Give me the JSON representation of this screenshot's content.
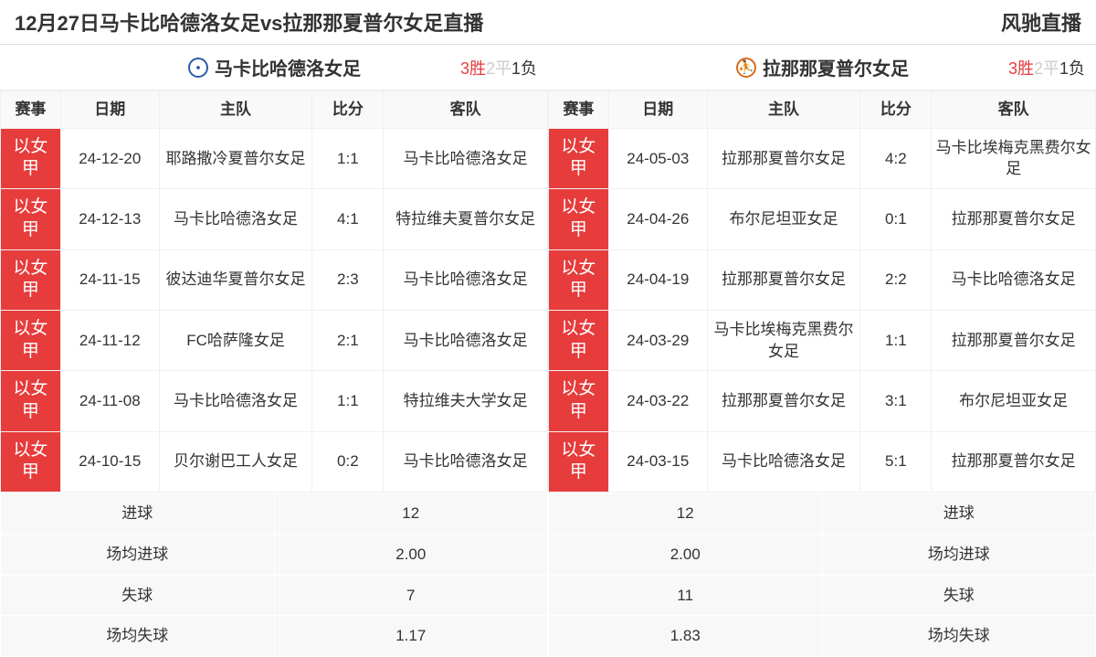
{
  "header": {
    "title": "12月27日马卡比哈德洛女足vs拉那那夏普尔女足直播",
    "brand": "风驰直播"
  },
  "colors": {
    "league_bg": "#e63c3c",
    "win": "#e63c3c",
    "draw": "#cccccc",
    "loss": "#333333"
  },
  "columns": {
    "league": "赛事",
    "date": "日期",
    "home": "主队",
    "score": "比分",
    "away": "客队"
  },
  "stats_labels": {
    "goals": "进球",
    "avg_goals": "场均进球",
    "conceded": "失球",
    "avg_conceded": "场均失球"
  },
  "left": {
    "team": "马卡比哈德洛女足",
    "record": {
      "win": "3胜",
      "draw": "2平",
      "loss": "1负"
    },
    "rows": [
      {
        "league": "以女甲",
        "date": "24-12-20",
        "home": "耶路撒冷夏普尔女足",
        "score": "1:1",
        "away": "马卡比哈德洛女足"
      },
      {
        "league": "以女甲",
        "date": "24-12-13",
        "home": "马卡比哈德洛女足",
        "score": "4:1",
        "away": "特拉维夫夏普尔女足"
      },
      {
        "league": "以女甲",
        "date": "24-11-15",
        "home": "彼达迪华夏普尔女足",
        "score": "2:3",
        "away": "马卡比哈德洛女足"
      },
      {
        "league": "以女甲",
        "date": "24-11-12",
        "home": "FC哈萨隆女足",
        "score": "2:1",
        "away": "马卡比哈德洛女足"
      },
      {
        "league": "以女甲",
        "date": "24-11-08",
        "home": "马卡比哈德洛女足",
        "score": "1:1",
        "away": "特拉维夫大学女足"
      },
      {
        "league": "以女甲",
        "date": "24-10-15",
        "home": "贝尔谢巴工人女足",
        "score": "0:2",
        "away": "马卡比哈德洛女足"
      }
    ],
    "stats": {
      "goals": "12",
      "avg_goals": "2.00",
      "conceded": "7",
      "avg_conceded": "1.17"
    }
  },
  "right": {
    "team": "拉那那夏普尔女足",
    "record": {
      "win": "3胜",
      "draw": "2平",
      "loss": "1负"
    },
    "rows": [
      {
        "league": "以女甲",
        "date": "24-05-03",
        "home": "拉那那夏普尔女足",
        "score": "4:2",
        "away": "马卡比埃梅克黑费尔女足"
      },
      {
        "league": "以女甲",
        "date": "24-04-26",
        "home": "布尔尼坦亚女足",
        "score": "0:1",
        "away": "拉那那夏普尔女足"
      },
      {
        "league": "以女甲",
        "date": "24-04-19",
        "home": "拉那那夏普尔女足",
        "score": "2:2",
        "away": "马卡比哈德洛女足"
      },
      {
        "league": "以女甲",
        "date": "24-03-29",
        "home": "马卡比埃梅克黑费尔女足",
        "score": "1:1",
        "away": "拉那那夏普尔女足"
      },
      {
        "league": "以女甲",
        "date": "24-03-22",
        "home": "拉那那夏普尔女足",
        "score": "3:1",
        "away": "布尔尼坦亚女足"
      },
      {
        "league": "以女甲",
        "date": "24-03-15",
        "home": "马卡比哈德洛女足",
        "score": "5:1",
        "away": "拉那那夏普尔女足"
      }
    ],
    "stats": {
      "goals": "12",
      "avg_goals": "2.00",
      "conceded": "11",
      "avg_conceded": "1.83"
    }
  }
}
